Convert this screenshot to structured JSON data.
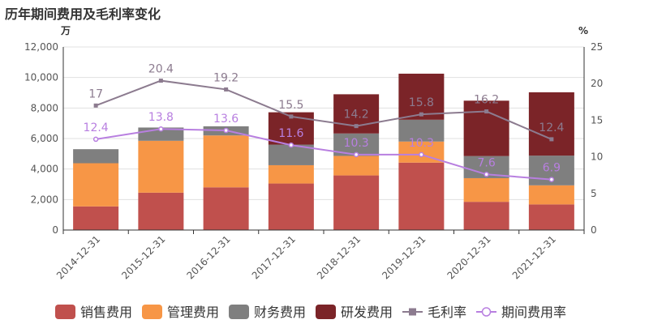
{
  "chart_data": {
    "type": "bar",
    "title": "历年期间费用及毛利率变化",
    "left_unit": "万",
    "right_unit": "%",
    "categories": [
      "2014-12-31",
      "2015-12-31",
      "2016-12-31",
      "2017-12-31",
      "2018-12-31",
      "2019-12-31",
      "2020-12-31",
      "2021-12-31"
    ],
    "stacked_series": [
      {
        "name": "销售费用",
        "color": "#c0504d",
        "values": [
          1550,
          2450,
          2800,
          3050,
          3580,
          4420,
          1850,
          1680
        ]
      },
      {
        "name": "管理费用",
        "color": "#f79646",
        "values": [
          2830,
          3400,
          3400,
          1200,
          1280,
          1380,
          1550,
          1250
        ]
      },
      {
        "name": "财务费用",
        "color": "#7f7f7f",
        "values": [
          920,
          870,
          600,
          1350,
          1470,
          1430,
          1450,
          1950
        ]
      },
      {
        "name": "研发费用",
        "color": "#7b2428",
        "values": [
          0,
          0,
          0,
          2120,
          2570,
          3020,
          3630,
          4150
        ]
      }
    ],
    "line_series": [
      {
        "name": "毛利率",
        "color": "#8c7b8f",
        "marker": "square",
        "values": [
          17,
          20.4,
          19.2,
          15.5,
          14.2,
          15.8,
          16.2,
          12.4
        ],
        "labels": [
          "17",
          "20.4",
          "19.2",
          "15.5",
          "14.2",
          "15.8",
          "16.2",
          "12.4"
        ]
      },
      {
        "name": "期间费用率",
        "color": "#b87fe0",
        "marker": "circle",
        "values": [
          12.4,
          13.8,
          13.6,
          11.6,
          10.3,
          10.3,
          7.6,
          6.9
        ],
        "labels": [
          "12.4",
          "13.8",
          "13.6",
          "11.6",
          "10.3",
          "10.3",
          "7.6",
          "6.9"
        ]
      }
    ],
    "y_left": {
      "min": 0,
      "max": 12000,
      "ticks": [
        "0",
        "2,000",
        "4,000",
        "6,000",
        "8,000",
        "10,000",
        "12,000"
      ]
    },
    "y_right": {
      "min": 0,
      "max": 25,
      "ticks": [
        "0",
        "5",
        "10",
        "15",
        "20",
        "25"
      ]
    },
    "legend_position": "bottom"
  }
}
